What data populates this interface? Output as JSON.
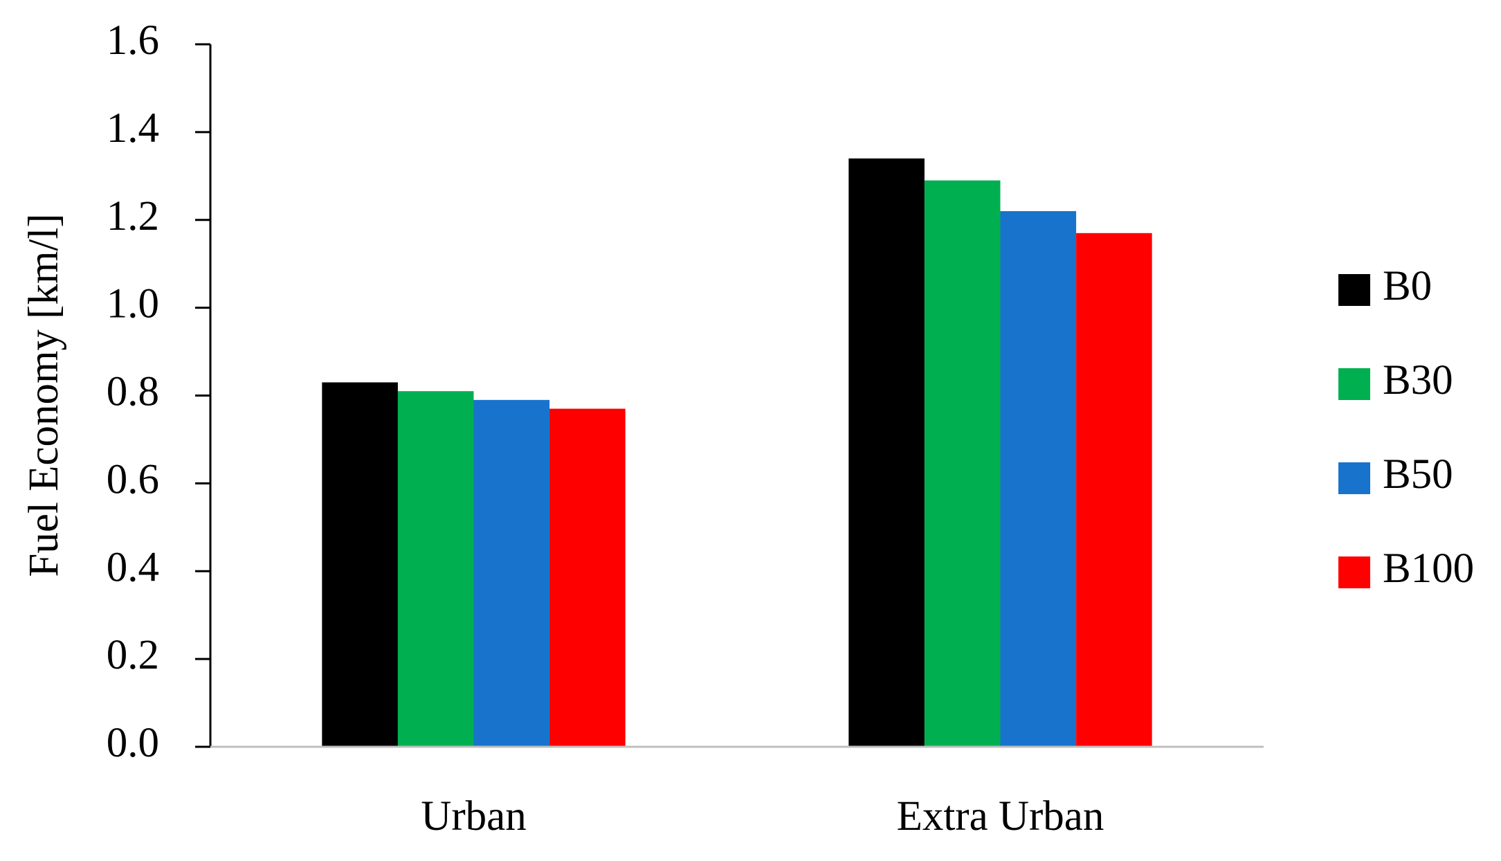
{
  "chart_data": {
    "type": "bar",
    "y_label": "Fuel Economy  [km/l]",
    "categories": [
      "Urban",
      "Extra Urban"
    ],
    "series": [
      {
        "name": "B0",
        "color": "#000000",
        "values": [
          0.83,
          1.34
        ]
      },
      {
        "name": "B30",
        "color": "#00b050",
        "values": [
          0.81,
          1.29
        ]
      },
      {
        "name": "B50",
        "color": "#1873cc",
        "values": [
          0.79,
          1.22
        ]
      },
      {
        "name": "B100",
        "color": "#ff0000",
        "values": [
          0.77,
          1.17
        ]
      }
    ],
    "ylim": [
      0,
      1.6
    ],
    "yticks": [
      {
        "value": 0,
        "label": "0.0"
      },
      0.2,
      0.4,
      0.6,
      0.8,
      {
        "value": 1,
        "label": "1.0"
      },
      1.2,
      1.4,
      1.6
    ],
    "grid": false,
    "legend": "right"
  }
}
